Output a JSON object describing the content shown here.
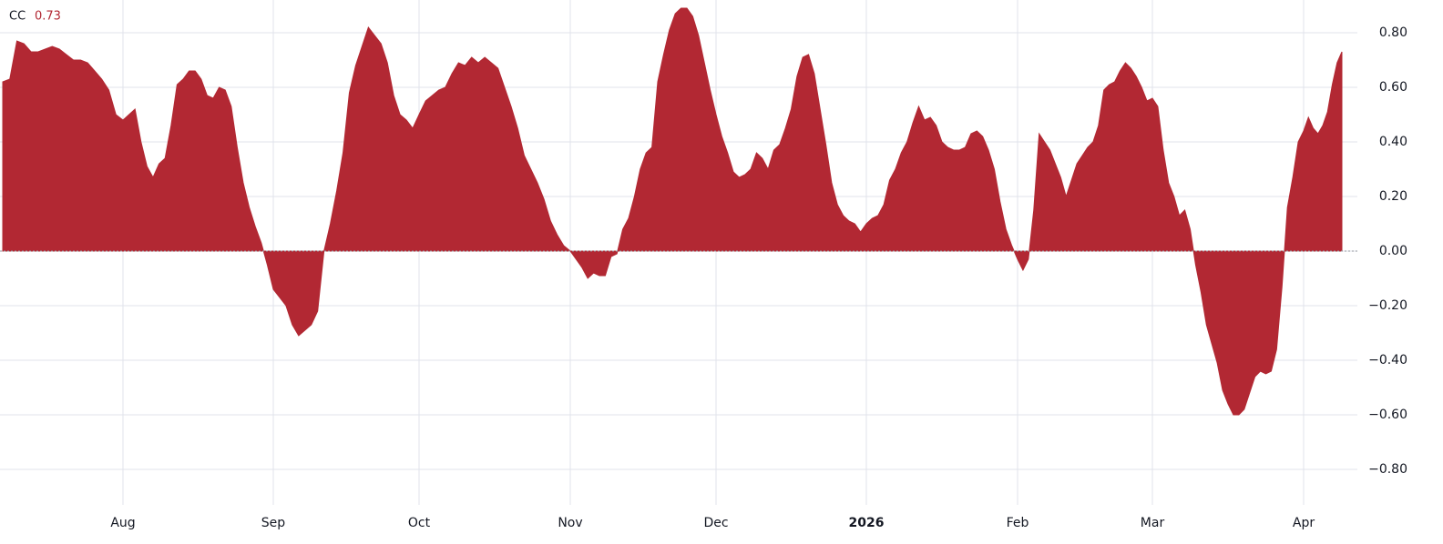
{
  "chart_data": {
    "type": "area",
    "categories": [
      null,
      null,
      null,
      null,
      null,
      null,
      null,
      null,
      null,
      null,
      null,
      null,
      null,
      null,
      null,
      null,
      null,
      "Aug",
      null,
      null,
      null,
      null,
      null,
      null,
      null,
      null,
      null,
      null,
      null,
      null,
      null,
      null,
      null,
      null,
      null,
      null,
      null,
      null,
      null,
      null,
      null,
      null,
      "Sep",
      null,
      null,
      null,
      null,
      null,
      null,
      null,
      null,
      null,
      null,
      null,
      null,
      null,
      null,
      null,
      null,
      null,
      null,
      null,
      null,
      null,
      null,
      "Oct",
      null,
      null,
      null,
      null,
      null,
      null,
      null,
      null,
      null,
      null,
      null,
      null,
      null,
      null,
      null,
      null,
      null,
      null,
      null,
      null,
      null,
      null,
      "Nov",
      null,
      null,
      null,
      null,
      null,
      null,
      null,
      null,
      null,
      null,
      null,
      null,
      null,
      null,
      null,
      null,
      null,
      null,
      null,
      null,
      null,
      null,
      null,
      null,
      "Dec",
      null,
      null,
      null,
      null,
      null,
      null,
      null,
      null,
      null,
      null,
      null,
      null,
      null,
      null,
      null,
      null,
      null,
      null,
      null,
      null,
      null,
      null,
      null,
      null,
      null,
      "2026",
      null,
      null,
      null,
      null,
      null,
      null,
      null,
      null,
      null,
      null,
      null,
      null,
      null,
      null,
      null,
      null,
      null,
      null,
      null,
      null,
      null,
      null,
      null,
      null,
      null,
      "Feb",
      null,
      null,
      null,
      null,
      null,
      null,
      null,
      null,
      null,
      null,
      null,
      null,
      null,
      null,
      null,
      null,
      null,
      null,
      null,
      null,
      null,
      null,
      null,
      null,
      "Mar",
      null,
      null,
      null,
      null,
      null,
      null,
      null,
      null,
      null,
      null,
      null,
      null,
      null,
      null,
      null,
      null,
      null,
      null,
      null,
      null,
      null,
      null,
      null,
      null,
      null,
      null,
      null,
      "Apr",
      null,
      null,
      null,
      null,
      null,
      null,
      null,
      null
    ],
    "series": [
      {
        "name": "CC",
        "color": "#b22833",
        "values": [
          0.62,
          0.63,
          0.77,
          0.76,
          0.73,
          0.73,
          0.74,
          0.75,
          0.74,
          0.72,
          0.7,
          0.7,
          0.69,
          0.66,
          0.63,
          0.59,
          0.5,
          0.48,
          0.5,
          0.52,
          0.4,
          0.31,
          0.27,
          0.32,
          0.34,
          0.46,
          0.61,
          0.63,
          0.66,
          0.66,
          0.63,
          0.57,
          0.56,
          0.6,
          0.59,
          0.53,
          0.38,
          0.25,
          0.16,
          0.09,
          0.03,
          -0.05,
          -0.14,
          -0.17,
          -0.2,
          -0.27,
          -0.31,
          -0.29,
          -0.27,
          -0.22,
          0.0,
          0.1,
          0.22,
          0.36,
          0.58,
          0.68,
          0.75,
          0.82,
          0.79,
          0.76,
          0.69,
          0.57,
          0.5,
          0.48,
          0.45,
          0.5,
          0.55,
          0.57,
          0.59,
          0.6,
          0.65,
          0.69,
          0.68,
          0.71,
          0.69,
          0.71,
          0.69,
          0.67,
          0.6,
          0.53,
          0.45,
          0.35,
          0.3,
          0.25,
          0.19,
          0.11,
          0.06,
          0.02,
          0.0,
          -0.03,
          -0.06,
          -0.1,
          -0.08,
          -0.09,
          -0.09,
          -0.02,
          -0.01,
          0.08,
          0.12,
          0.2,
          0.3,
          0.36,
          0.38,
          0.62,
          0.72,
          0.81,
          0.87,
          0.89,
          0.89,
          0.86,
          0.79,
          0.69,
          0.59,
          0.5,
          0.42,
          0.36,
          0.29,
          0.27,
          0.28,
          0.3,
          0.36,
          0.34,
          0.3,
          0.37,
          0.39,
          0.45,
          0.52,
          0.64,
          0.71,
          0.72,
          0.65,
          0.52,
          0.39,
          0.25,
          0.17,
          0.13,
          0.11,
          0.1,
          0.07,
          0.1,
          0.12,
          0.13,
          0.17,
          0.26,
          0.3,
          0.36,
          0.4,
          0.47,
          0.53,
          0.48,
          0.49,
          0.46,
          0.4,
          0.38,
          0.37,
          0.37,
          0.38,
          0.43,
          0.44,
          0.42,
          0.37,
          0.3,
          0.18,
          0.08,
          0.02,
          -0.03,
          -0.07,
          -0.03,
          0.15,
          0.43,
          0.4,
          0.37,
          0.32,
          0.27,
          0.2,
          0.26,
          0.32,
          0.35,
          0.38,
          0.4,
          0.46,
          0.59,
          0.61,
          0.62,
          0.66,
          0.69,
          0.67,
          0.64,
          0.6,
          0.55,
          0.56,
          0.53,
          0.37,
          0.25,
          0.2,
          0.13,
          0.15,
          0.08,
          -0.05,
          -0.15,
          -0.27,
          -0.34,
          -0.41,
          -0.51,
          -0.56,
          -0.6,
          -0.6,
          -0.58,
          -0.52,
          -0.46,
          -0.44,
          -0.45,
          -0.44,
          -0.36,
          -0.13,
          0.16,
          0.27,
          0.4,
          0.44,
          0.49,
          0.45,
          0.43,
          0.46,
          0.51,
          0.61,
          0.69,
          0.73
        ]
      }
    ],
    "ylim": [
      -0.93,
      0.92
    ],
    "yticks": [
      {
        "value": 0.8,
        "label": "0.80"
      },
      {
        "value": 0.6,
        "label": "0.60"
      },
      {
        "value": 0.4,
        "label": "0.40"
      },
      {
        "value": 0.2,
        "label": "0.20"
      },
      {
        "value": 0,
        "label": "0.00"
      },
      {
        "value": -0.2,
        "label": "−0.20"
      },
      {
        "value": -0.4,
        "label": "−0.40"
      },
      {
        "value": -0.6,
        "label": "−0.60"
      },
      {
        "value": -0.8,
        "label": "−0.80"
      }
    ],
    "grid": true
  }
}
